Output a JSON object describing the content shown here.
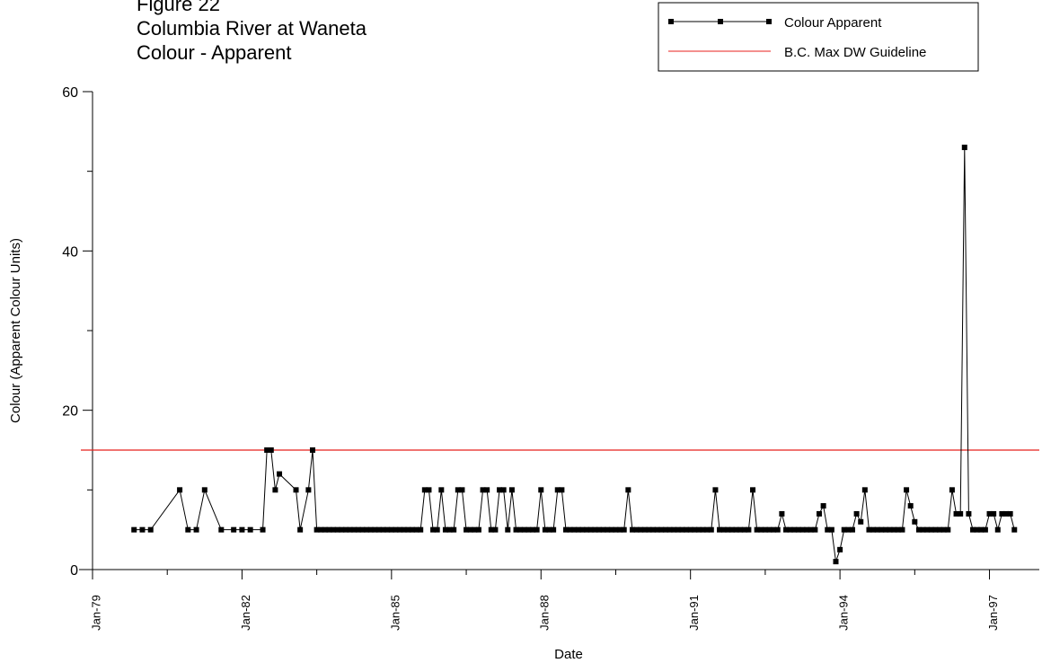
{
  "chart_data": {
    "type": "line",
    "title": [
      "Figure 22",
      "Columbia River at Waneta",
      "Colour - Apparent"
    ],
    "x_label": "Date",
    "y_label": "Colour (Apparent Colour Units)",
    "xlim": [
      "1979-01",
      "1998-01"
    ],
    "xticks": [
      {
        "value": "1979-01",
        "label": "Jan-79"
      },
      {
        "value": "1982-01",
        "label": "Jan-82"
      },
      {
        "value": "1985-01",
        "label": "Jan-85"
      },
      {
        "value": "1988-01",
        "label": "Jan-88"
      },
      {
        "value": "1991-01",
        "label": "Jan-91"
      },
      {
        "value": "1994-01",
        "label": "Jan-94"
      },
      {
        "value": "1997-01",
        "label": "Jan-97"
      }
    ],
    "minor_xticks": [
      "1980-07",
      "1983-07",
      "1986-07",
      "1989-07",
      "1992-07",
      "1995-07"
    ],
    "ylim": [
      0,
      60
    ],
    "yticks": [
      0,
      20,
      40,
      60
    ],
    "minor_yticks": [
      10,
      30,
      50
    ],
    "legend_position": "top-right",
    "guideline": {
      "name": "B.C. Max DW Guideline",
      "value": 15,
      "color": "#e8201c"
    },
    "series": [
      {
        "name": "Colour Apparent",
        "color": "#000000",
        "x": [
          "1979-11",
          "1980-01",
          "1980-03",
          "1980-10",
          "1980-12",
          "1981-02",
          "1981-04",
          "1981-08",
          "1981-11",
          "1982-01",
          "1982-03",
          "1982-06",
          "1982-07",
          "1982-08",
          "1982-09",
          "1982-10",
          "1983-02",
          "1983-03",
          "1983-05",
          "1983-06",
          "1983-07",
          "1983-08",
          "1983-09",
          "1983-10",
          "1983-11",
          "1983-12",
          "1984-01",
          "1984-02",
          "1984-03",
          "1984-04",
          "1984-05",
          "1984-06",
          "1984-07",
          "1984-08",
          "1984-09",
          "1984-10",
          "1984-11",
          "1984-12",
          "1985-01",
          "1985-02",
          "1985-03",
          "1985-04",
          "1985-05",
          "1985-06",
          "1985-07",
          "1985-08",
          "1985-09",
          "1985-10",
          "1985-11",
          "1985-12",
          "1986-01",
          "1986-02",
          "1986-03",
          "1986-04",
          "1986-05",
          "1986-06",
          "1986-07",
          "1986-08",
          "1986-09",
          "1986-10",
          "1986-11",
          "1986-12",
          "1987-01",
          "1987-02",
          "1987-03",
          "1987-04",
          "1987-05",
          "1987-06",
          "1987-07",
          "1987-08",
          "1987-09",
          "1987-10",
          "1987-11",
          "1987-12",
          "1988-01",
          "1988-02",
          "1988-03",
          "1988-04",
          "1988-05",
          "1988-06",
          "1988-07",
          "1988-08",
          "1988-09",
          "1988-10",
          "1988-11",
          "1988-12",
          "1989-01",
          "1989-02",
          "1989-03",
          "1989-04",
          "1989-05",
          "1989-06",
          "1989-07",
          "1989-08",
          "1989-09",
          "1989-10",
          "1989-11",
          "1989-12",
          "1990-01",
          "1990-02",
          "1990-03",
          "1990-04",
          "1990-05",
          "1990-06",
          "1990-07",
          "1990-08",
          "1990-09",
          "1990-10",
          "1990-11",
          "1990-12",
          "1991-01",
          "1991-02",
          "1991-03",
          "1991-04",
          "1991-05",
          "1991-06",
          "1991-07",
          "1991-08",
          "1991-09",
          "1991-10",
          "1991-11",
          "1991-12",
          "1992-01",
          "1992-02",
          "1992-03",
          "1992-04",
          "1992-05",
          "1992-06",
          "1992-07",
          "1992-08",
          "1992-09",
          "1992-10",
          "1992-11",
          "1992-12",
          "1993-01",
          "1993-02",
          "1993-03",
          "1993-04",
          "1993-05",
          "1993-06",
          "1993-07",
          "1993-08",
          "1993-09",
          "1993-10",
          "1993-11",
          "1993-12",
          "1994-01",
          "1994-02",
          "1994-03",
          "1994-04",
          "1994-05",
          "1994-06",
          "1994-07",
          "1994-08",
          "1994-09",
          "1994-10",
          "1994-11",
          "1994-12",
          "1995-01",
          "1995-02",
          "1995-03",
          "1995-04",
          "1995-05",
          "1995-06",
          "1995-07",
          "1995-08",
          "1995-09",
          "1995-10",
          "1995-11",
          "1995-12",
          "1996-01",
          "1996-02",
          "1996-03",
          "1996-04",
          "1996-05",
          "1996-06",
          "1996-07",
          "1996-08",
          "1996-09",
          "1996-10",
          "1996-11",
          "1996-12",
          "1997-01",
          "1997-02",
          "1997-03",
          "1997-04",
          "1997-05",
          "1997-06",
          "1997-07"
        ],
        "values": [
          5,
          5,
          5,
          10,
          5,
          5,
          10,
          5,
          5,
          5,
          5,
          5,
          15,
          15,
          10,
          12,
          10,
          5,
          10,
          15,
          5,
          5,
          5,
          5,
          5,
          5,
          5,
          5,
          5,
          5,
          5,
          5,
          5,
          5,
          5,
          5,
          5,
          5,
          5,
          5,
          5,
          5,
          5,
          5,
          5,
          5,
          10,
          10,
          5,
          5,
          10,
          5,
          5,
          5,
          10,
          10,
          5,
          5,
          5,
          5,
          10,
          10,
          5,
          5,
          10,
          10,
          5,
          10,
          5,
          5,
          5,
          5,
          5,
          5,
          10,
          5,
          5,
          5,
          10,
          10,
          5,
          5,
          5,
          5,
          5,
          5,
          5,
          5,
          5,
          5,
          5,
          5,
          5,
          5,
          5,
          10,
          5,
          5,
          5,
          5,
          5,
          5,
          5,
          5,
          5,
          5,
          5,
          5,
          5,
          5,
          5,
          5,
          5,
          5,
          5,
          5,
          10,
          5,
          5,
          5,
          5,
          5,
          5,
          5,
          5,
          10,
          5,
          5,
          5,
          5,
          5,
          5,
          7,
          5,
          5,
          5,
          5,
          5,
          5,
          5,
          5,
          7,
          8,
          5,
          5,
          1,
          2.5,
          5,
          5,
          5,
          7,
          6,
          10,
          5,
          5,
          5,
          5,
          5,
          5,
          5,
          5,
          5,
          10,
          8,
          6,
          5,
          5,
          5,
          5,
          5,
          5,
          5,
          5,
          10,
          7,
          7,
          53,
          7,
          5,
          5,
          5,
          5,
          7,
          7,
          5,
          7,
          7,
          7,
          5
        ]
      }
    ]
  }
}
